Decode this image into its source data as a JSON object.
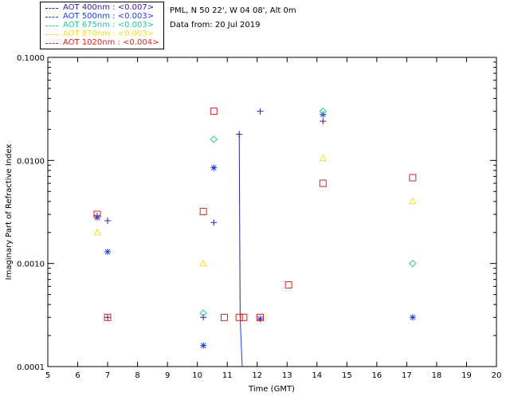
{
  "header": {
    "site": "PML, N 50 22', W 04 08', Alt 0m",
    "date": "Data from: 20 Jul 2019"
  },
  "legend": [
    {
      "label": "AOT  400nm : <0.007>",
      "color": "#3a1a9a"
    },
    {
      "label": "AOT  500nm : <0.003>",
      "color": "#1f3fd6"
    },
    {
      "label": "AOT  675nm : <0.003>",
      "color": "#1ec7a8"
    },
    {
      "label": "AOT  870nm : <0.003>",
      "color": "#f0e020"
    },
    {
      "label": "AOT 1020nm : <0.004>",
      "color": "#e02020"
    }
  ],
  "chart_data": {
    "type": "scatter",
    "title": "",
    "xlabel": "Time (GMT)",
    "ylabel": "Imaginary Part of Refractive Index",
    "xlim": [
      5,
      20
    ],
    "ylim": [
      0.0001,
      0.1
    ],
    "yscale": "log",
    "xticks": [
      5,
      6,
      7,
      8,
      9,
      10,
      11,
      12,
      13,
      14,
      15,
      16,
      17,
      18,
      19,
      20
    ],
    "yticks": [
      {
        "value": 0.0001,
        "label": "0.0001"
      },
      {
        "value": 0.001,
        "label": "0.0010"
      },
      {
        "value": 0.01,
        "label": "0.0100"
      },
      {
        "value": 0.1,
        "label": "0.1000"
      }
    ],
    "series": [
      {
        "name": "AOT 400nm",
        "marker": "plus",
        "color": "#3a1a9a",
        "points": [
          [
            6.65,
            0.0029
          ],
          [
            7.0,
            0.0026
          ],
          [
            7.0,
            0.0003
          ],
          [
            10.2,
            0.0003
          ],
          [
            10.55,
            0.0025
          ],
          [
            11.4,
            0.018
          ],
          [
            12.1,
            0.03
          ],
          [
            14.2,
            0.024
          ]
        ]
      },
      {
        "name": "AOT 500nm",
        "marker": "asterisk",
        "color": "#1f3fd6",
        "points": [
          [
            6.65,
            0.0028
          ],
          [
            7.0,
            0.0013
          ],
          [
            10.2,
            0.00016
          ],
          [
            10.55,
            0.0085
          ],
          [
            12.1,
            0.00029
          ],
          [
            14.2,
            0.028
          ],
          [
            17.2,
            0.0003
          ]
        ]
      },
      {
        "name": "AOT 675nm",
        "marker": "diamond",
        "color": "#1ec7a8",
        "points": [
          [
            10.2,
            0.00033
          ],
          [
            10.55,
            0.016
          ],
          [
            14.2,
            0.03
          ],
          [
            17.2,
            0.001
          ]
        ]
      },
      {
        "name": "AOT 870nm",
        "marker": "triangle",
        "color": "#f0e020",
        "points": [
          [
            6.65,
            0.002
          ],
          [
            10.2,
            0.001
          ],
          [
            14.2,
            0.0105
          ],
          [
            17.2,
            0.004
          ]
        ]
      },
      {
        "name": "AOT 1020nm",
        "marker": "square",
        "color": "#e02020",
        "points": [
          [
            6.65,
            0.003
          ],
          [
            7.0,
            0.0003
          ],
          [
            10.2,
            0.0032
          ],
          [
            10.55,
            0.03
          ],
          [
            10.9,
            0.0003
          ],
          [
            11.4,
            0.0003
          ],
          [
            11.55,
            0.0003
          ],
          [
            12.1,
            0.0003
          ],
          [
            13.05,
            0.00062
          ],
          [
            14.2,
            0.006
          ],
          [
            17.2,
            0.0068
          ]
        ]
      }
    ],
    "lines": [
      {
        "name": "AOT 400nm trend",
        "color": "#3a1a9a",
        "points": [
          [
            11.4,
            0.018
          ],
          [
            11.43,
            0.0003
          ]
        ]
      },
      {
        "name": "AOT 500nm trend",
        "color": "#1f3fd6",
        "points": [
          [
            11.43,
            0.0003
          ],
          [
            11.5,
            0.0001
          ]
        ]
      }
    ]
  }
}
